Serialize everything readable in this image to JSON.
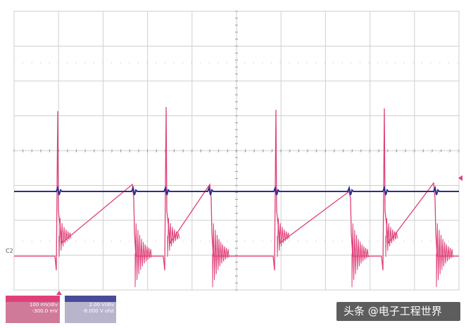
{
  "scope": {
    "channel2_label": "C2",
    "grid": {
      "h_divisions": 10,
      "v_divisions": 8,
      "subdivisions": 5
    }
  },
  "channel2": {
    "header": "",
    "scale": "100 mV/div",
    "offset": "-300.0 mV",
    "color": "#e0407a"
  },
  "channel1": {
    "header": "",
    "scale": "2.00 V/div",
    "offset": "-8.000 V ofst",
    "color": "#2e2e8a"
  },
  "watermark": {
    "text": "头条 @电子工程世界"
  },
  "colors": {
    "grid": "#cfcfcf",
    "trigger_marker": "#e0407a",
    "ch1_marker": "#e0407a"
  }
}
